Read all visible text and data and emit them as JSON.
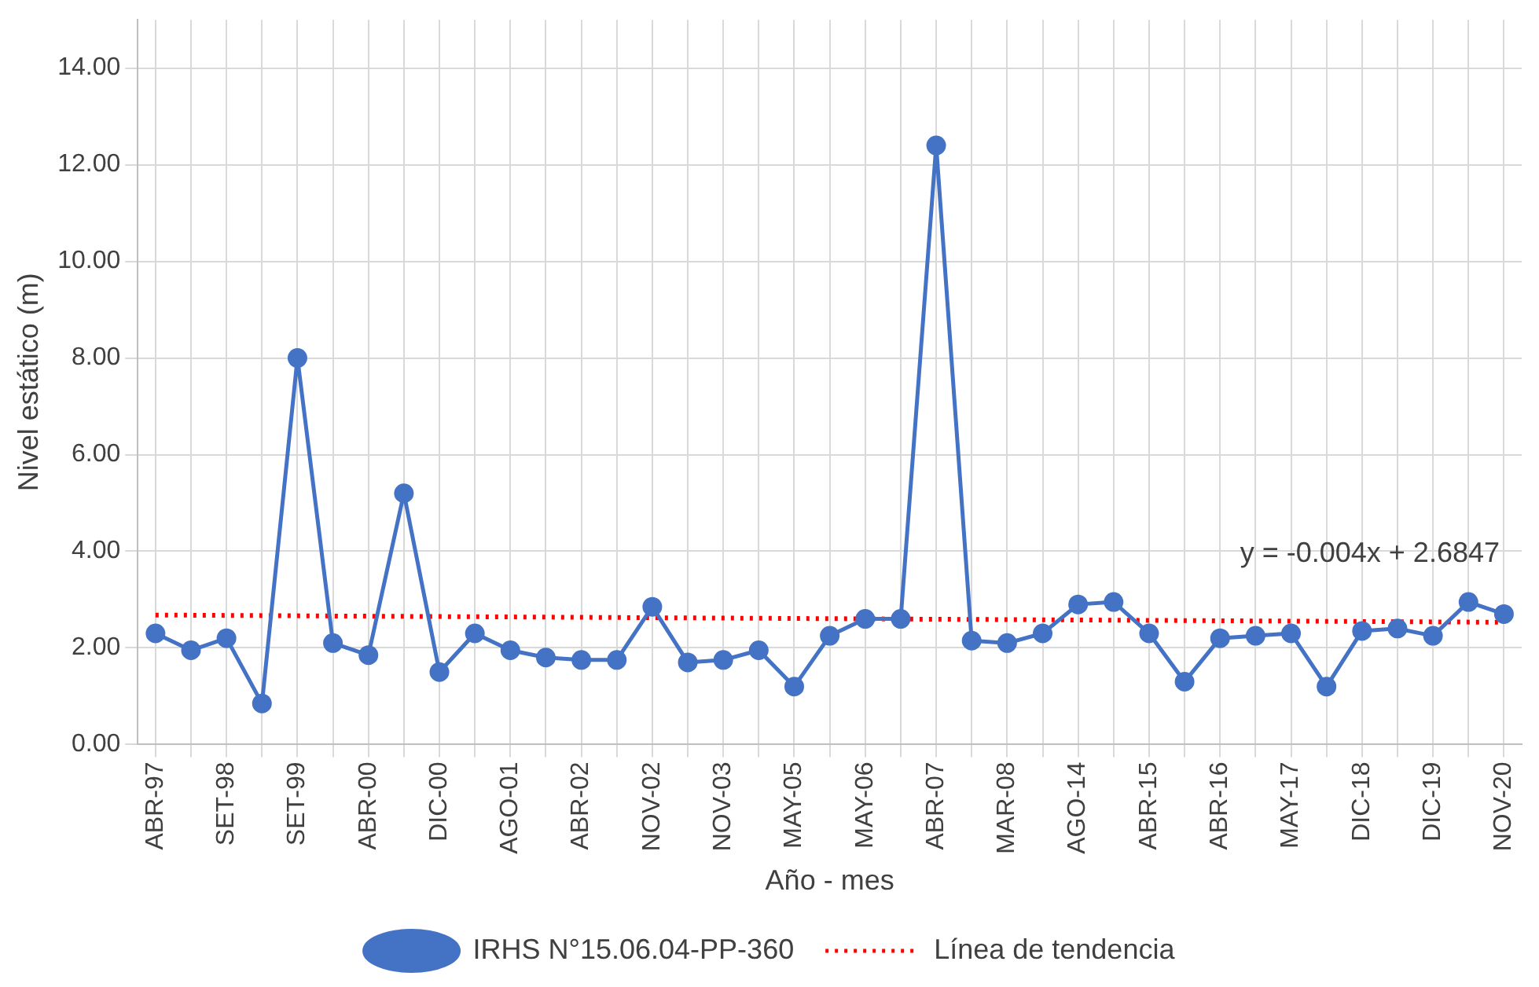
{
  "chart_data": {
    "type": "line",
    "xlabel": "Año - mes",
    "ylabel": "Nivel estático (m)",
    "categories": [
      "ABR-97",
      null,
      "SET-98",
      null,
      "SET-99",
      null,
      "ABR-00",
      null,
      "DIC-00",
      null,
      "AGO-01",
      null,
      "ABR-02",
      null,
      "NOV-02",
      null,
      "NOV-03",
      null,
      "MAY-05",
      null,
      "MAY-06",
      null,
      "ABR-07",
      null,
      "MAR-08",
      null,
      "AGO-14",
      null,
      "ABR-15",
      null,
      "ABR-16",
      null,
      "MAY-17",
      null,
      "DIC-18",
      null,
      "DIC-19",
      null,
      "NOV-20"
    ],
    "series": [
      {
        "name": "IRHS N°15.06.04-PP-360",
        "color": "#4472c4",
        "marker": "circle",
        "line_style": "solid",
        "values": [
          2.3,
          1.95,
          2.2,
          0.85,
          8.0,
          2.1,
          1.85,
          5.2,
          1.5,
          2.3,
          1.95,
          1.8,
          1.75,
          1.75,
          2.85,
          1.7,
          1.75,
          1.95,
          1.2,
          2.25,
          2.6,
          2.6,
          12.4,
          2.15,
          2.1,
          2.3,
          2.9,
          2.95,
          2.3,
          1.3,
          2.2,
          2.25,
          2.3,
          1.2,
          2.35,
          2.4,
          2.25,
          2.95,
          2.7
        ]
      },
      {
        "name": "Línea de tendencia",
        "type": "line",
        "color": "#ff0000",
        "marker": "none",
        "line_style": "dotted",
        "values": [
          2.68,
          null,
          null,
          null,
          null,
          null,
          null,
          null,
          null,
          null,
          null,
          null,
          null,
          null,
          null,
          null,
          null,
          null,
          null,
          null,
          null,
          null,
          null,
          null,
          null,
          null,
          null,
          null,
          null,
          null,
          null,
          null,
          null,
          null,
          null,
          null,
          null,
          null,
          2.53
        ]
      }
    ],
    "ylim": [
      0,
      15
    ],
    "yticks": [
      {
        "value": 0,
        "label": "0.00"
      },
      {
        "value": 2,
        "label": "2.00"
      },
      {
        "value": 4,
        "label": "4.00"
      },
      {
        "value": 6,
        "label": "6.00"
      },
      {
        "value": 8,
        "label": "8.00"
      },
      {
        "value": 10,
        "label": "10.00"
      },
      {
        "value": 12,
        "label": "12.00"
      },
      {
        "value": 14,
        "label": "14.00"
      }
    ],
    "grid": true,
    "legend": "bottom",
    "annotations": [
      "y = -0.004x + 2.6847"
    ]
  }
}
